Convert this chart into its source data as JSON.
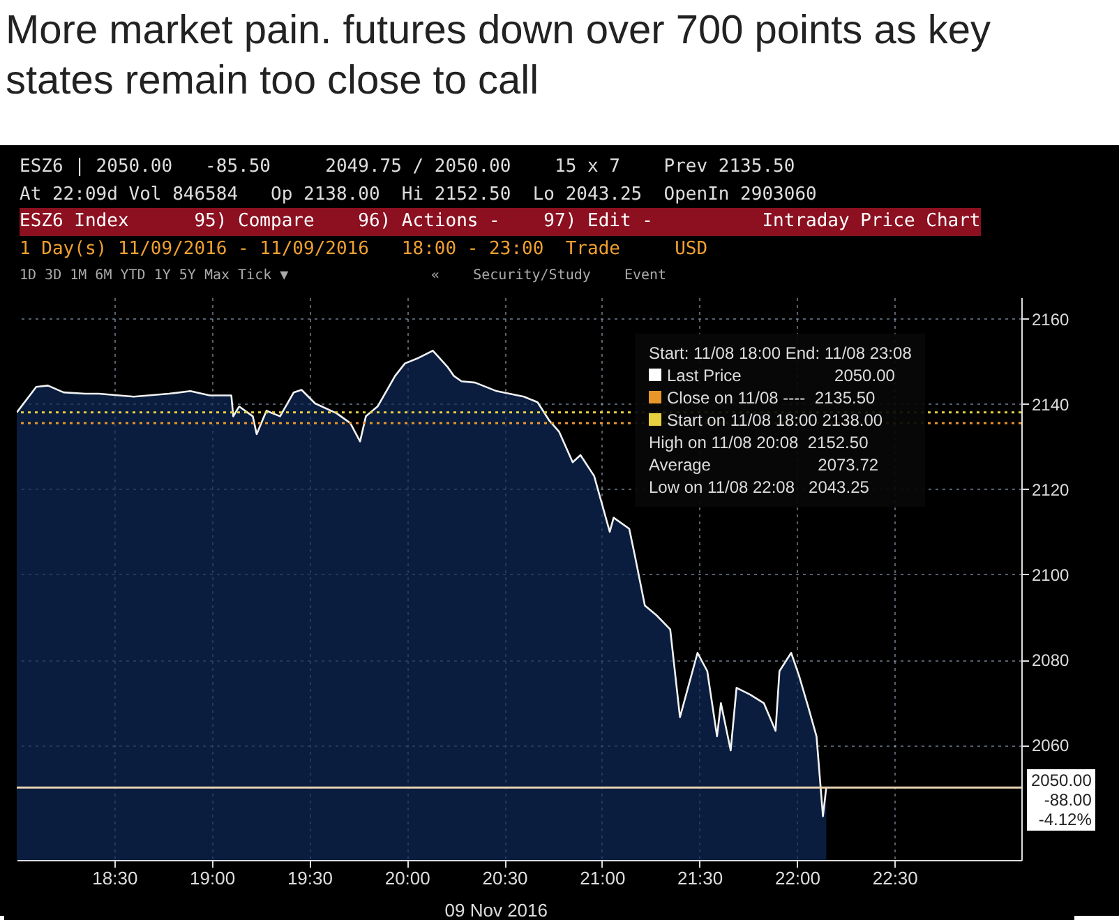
{
  "chart_data": {
    "type": "area",
    "title": "More market pain. futures down over 700 points as key states remain too close to call",
    "xlabel": "09 Nov 2016",
    "x": [
      18.0,
      18.1,
      18.16,
      18.24,
      18.35,
      18.42,
      18.6,
      18.78,
      18.89,
      18.99,
      19.1,
      19.11,
      19.14,
      19.21,
      19.23,
      19.28,
      19.35,
      19.42,
      19.46,
      19.53,
      19.64,
      19.71,
      19.76,
      19.79,
      19.85,
      19.94,
      19.99,
      20.06,
      20.133,
      20.21,
      20.24,
      20.28,
      20.35,
      20.46,
      20.6,
      20.67,
      20.73,
      20.78,
      20.85,
      20.89,
      20.96,
      21.01,
      21.04,
      21.06,
      21.14,
      21.17,
      21.22,
      21.28,
      21.35,
      21.4,
      21.49,
      21.54,
      21.59,
      21.61,
      21.66,
      21.69,
      21.76,
      21.83,
      21.89,
      21.91,
      21.97,
      22.01,
      22.06,
      22.1,
      22.133,
      22.15
    ],
    "series": [
      {
        "color": "#0e2a58",
        "values": [
          2138.0,
          2144.0,
          2144.3,
          2142.7,
          2142.4,
          2142.4,
          2141.7,
          2142.4,
          2143.0,
          2142.0,
          2142.0,
          2137.1,
          2139.4,
          2137.1,
          2132.9,
          2138.4,
          2137.1,
          2142.7,
          2143.3,
          2140.1,
          2137.8,
          2135.5,
          2131.2,
          2137.1,
          2139.4,
          2146.6,
          2149.5,
          2150.8,
          2152.5,
          2148.6,
          2146.6,
          2145.3,
          2145.0,
          2143.0,
          2141.7,
          2140.4,
          2136.1,
          2133.5,
          2126.3,
          2128.0,
          2123.1,
          2114.9,
          2110.0,
          2113.3,
          2110.7,
          2104.1,
          2092.7,
          2090.4,
          2087.1,
          2066.5,
          2081.6,
          2077.3,
          2062.0,
          2069.8,
          2058.7,
          2073.4,
          2071.8,
          2069.8,
          2063.3,
          2077.3,
          2081.6,
          2076.3,
          2068.5,
          2062.0,
          2043.25,
          2050.0
        ]
      }
    ],
    "xlim": [
      18.0,
      23.15
    ],
    "ylim": [
      2033,
      2165
    ],
    "xticks": [
      {
        "value": 18.5,
        "label": "18:30"
      },
      {
        "value": 19.0,
        "label": "19:00"
      },
      {
        "value": 19.5,
        "label": "19:30"
      },
      {
        "value": 20.0,
        "label": "20:00"
      },
      {
        "value": 20.5,
        "label": "20:30"
      },
      {
        "value": 21.0,
        "label": "21:00"
      },
      {
        "value": 21.5,
        "label": "21:30"
      },
      {
        "value": 22.0,
        "label": "22:00"
      },
      {
        "value": 22.5,
        "label": "22:30"
      }
    ],
    "yticks": [
      2060,
      2080,
      2100,
      2120,
      2140,
      2160
    ],
    "grid": true,
    "ref_lines": [
      {
        "axis": "y",
        "value": 2135.5,
        "color": "#e8962a",
        "line_style": "dotted"
      },
      {
        "axis": "y",
        "value": 2138,
        "color": "#e8d040",
        "line_style": "dotted"
      },
      {
        "axis": "y",
        "value": 2050,
        "color": "#e6d2b0",
        "line_style": "solid"
      }
    ],
    "annotations": [
      "ESZ6 | 2050.00   -85.50     2049.75 / 2050.00    15 x 7    Prev 2135.50",
      "At 22:09d Vol 846584   Op 2138.00  Hi 2152.50  Lo 2043.25  OpenIn 2903060",
      "ESZ6 Index      95) Compare    96) Actions -    97) Edit -          Intraday Price Chart",
      "1 Day(s) 11/09/2016 - 11/09/2016   18:00 - 23:00  Trade     USD",
      "1D 3D 1M 6M YTD 1Y 5Y Max Tick ▼                 «    Security/Study    Event",
      "Start: 11/08 18:00 End: 11/08 23:08",
      "Last Price                    2050.00",
      "Close on 11/08 ----  2135.50",
      "Start on 11/08 18:00 2138.00",
      "High on 11/08 20:08  2152.50",
      "Average                       2073.72",
      "Low on 11/08 22:08   2043.25",
      "2050.00",
      "-88.00",
      "-4.12%"
    ]
  }
}
